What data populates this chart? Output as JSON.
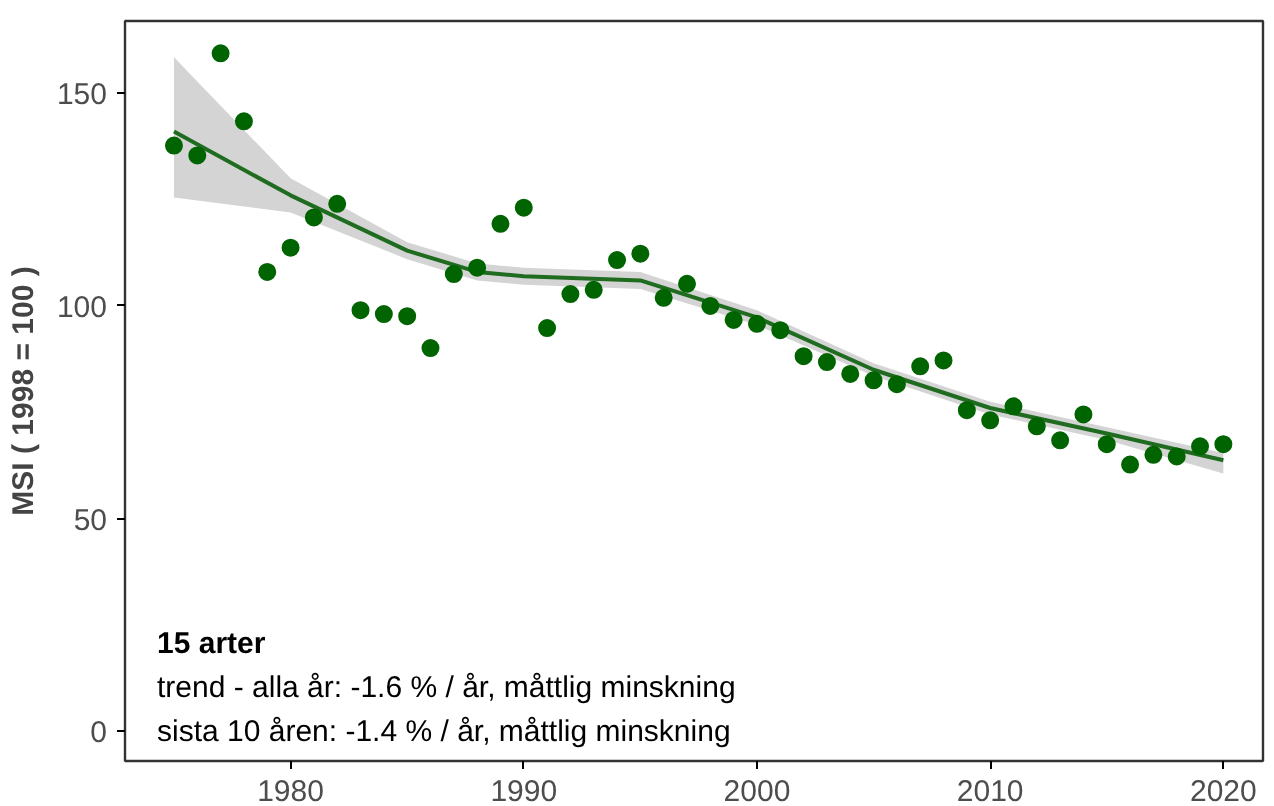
{
  "chart_data": {
    "type": "scatter",
    "ylabel": "MSI ( 1998 = 100 )",
    "xlim": [
      1972.9,
      2021.7
    ],
    "xticks": [
      1980,
      1990,
      2000,
      2010,
      2020
    ],
    "ylim": [
      -7,
      167
    ],
    "yticks": [
      0,
      50,
      100,
      150
    ],
    "grid": false,
    "series": [
      {
        "marker": "circle",
        "color": "#006400",
        "x": [
          1975,
          1976,
          1977,
          1978,
          1979,
          1980,
          1981,
          1982,
          1983,
          1984,
          1985,
          1986,
          1987,
          1988,
          1989,
          1990,
          1991,
          1992,
          1993,
          1994,
          1995,
          1996,
          1997,
          1998,
          1999,
          2000,
          2001,
          2002,
          2003,
          2004,
          2005,
          2006,
          2007,
          2008,
          2009,
          2010,
          2011,
          2012,
          2013,
          2014,
          2015,
          2016,
          2017,
          2018,
          2019,
          2020
        ],
        "values": [
          137.7,
          135.4,
          159.4,
          143.4,
          108,
          113.7,
          120.8,
          124,
          99,
          98.1,
          97.6,
          90.1,
          107.5,
          109,
          119.3,
          123.1,
          94.8,
          102.8,
          103.8,
          110.8,
          112.3,
          101.9,
          105.2,
          100,
          96.7,
          95.8,
          94.3,
          88.2,
          86.8,
          84,
          82.5,
          81.6,
          85.8,
          87.2,
          75.5,
          73.1,
          76.4,
          71.7,
          68.4,
          74.5,
          67.5,
          62.7,
          65,
          64.6,
          67,
          67.5
        ]
      },
      {
        "type": "line",
        "marker": "none",
        "color": "#1f6b1f",
        "x": [
          1975,
          1980,
          1985,
          1988,
          1990,
          1995,
          2000,
          2005,
          2010,
          2015,
          2020
        ],
        "values": [
          141,
          126,
          113,
          108,
          107,
          106,
          97.3,
          85,
          76,
          70,
          63.7
        ],
        "lower": [
          125.5,
          122,
          111,
          106,
          105,
          104,
          95.5,
          83.5,
          74.5,
          68.5,
          60.6
        ],
        "upper": [
          158.5,
          130,
          115,
          110,
          109,
          108,
          99,
          86.5,
          77.5,
          71.5,
          65.4
        ]
      }
    ],
    "annotations": [
      "15 arter",
      "trend - alla år: -1.6 % / år, måttlig minskning",
      "sista 10 åren: -1.4 % / år, måttlig minskning"
    ]
  }
}
